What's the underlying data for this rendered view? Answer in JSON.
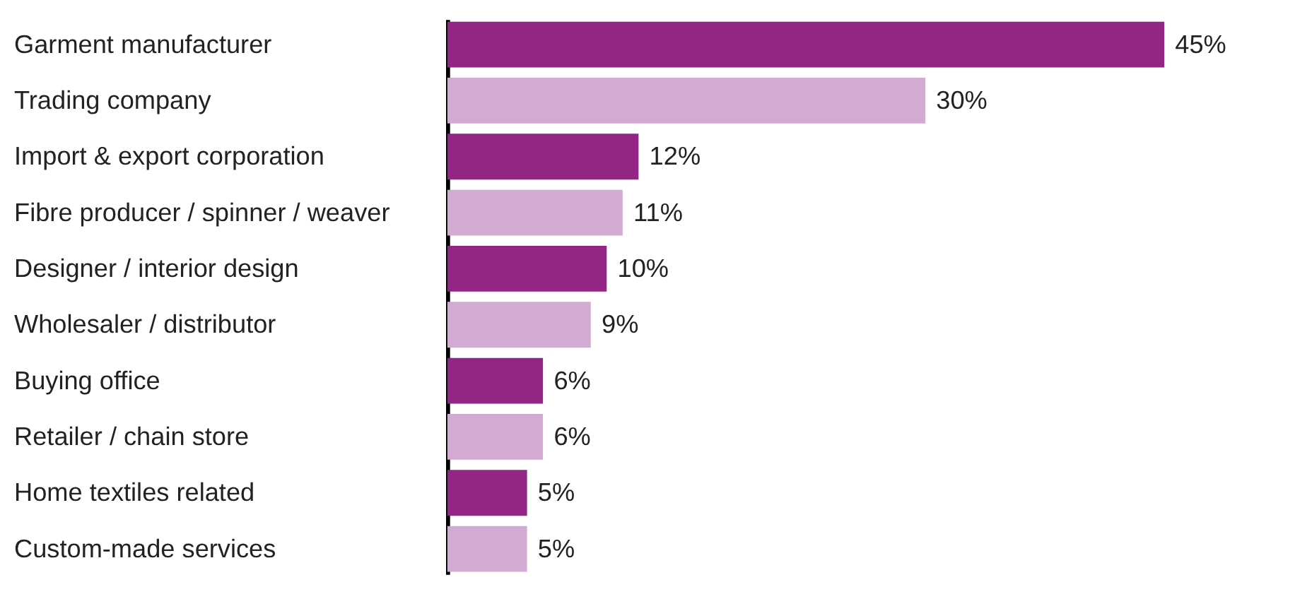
{
  "chart_data": {
    "type": "bar",
    "orientation": "horizontal",
    "categories": [
      "Garment manufacturer",
      "Trading company",
      "Import & export corporation",
      "Fibre producer / spinner / weaver",
      "Designer / interior design",
      "Wholesaler / distributor",
      "Buying office",
      "Retailer / chain store",
      "Home textiles related",
      "Custom-made services"
    ],
    "values": [
      45,
      30,
      12,
      11,
      10,
      9,
      6,
      6,
      5,
      5
    ],
    "value_labels": [
      "45%",
      "30%",
      "12%",
      "11%",
      "10%",
      "9%",
      "6%",
      "6%",
      "5%",
      "5%"
    ],
    "colors": [
      "#932585",
      "#d2aad2",
      "#932585",
      "#d2aad2",
      "#932585",
      "#d2aad2",
      "#932585",
      "#d2aad2",
      "#932585",
      "#d2aad2"
    ],
    "grid": false
  }
}
